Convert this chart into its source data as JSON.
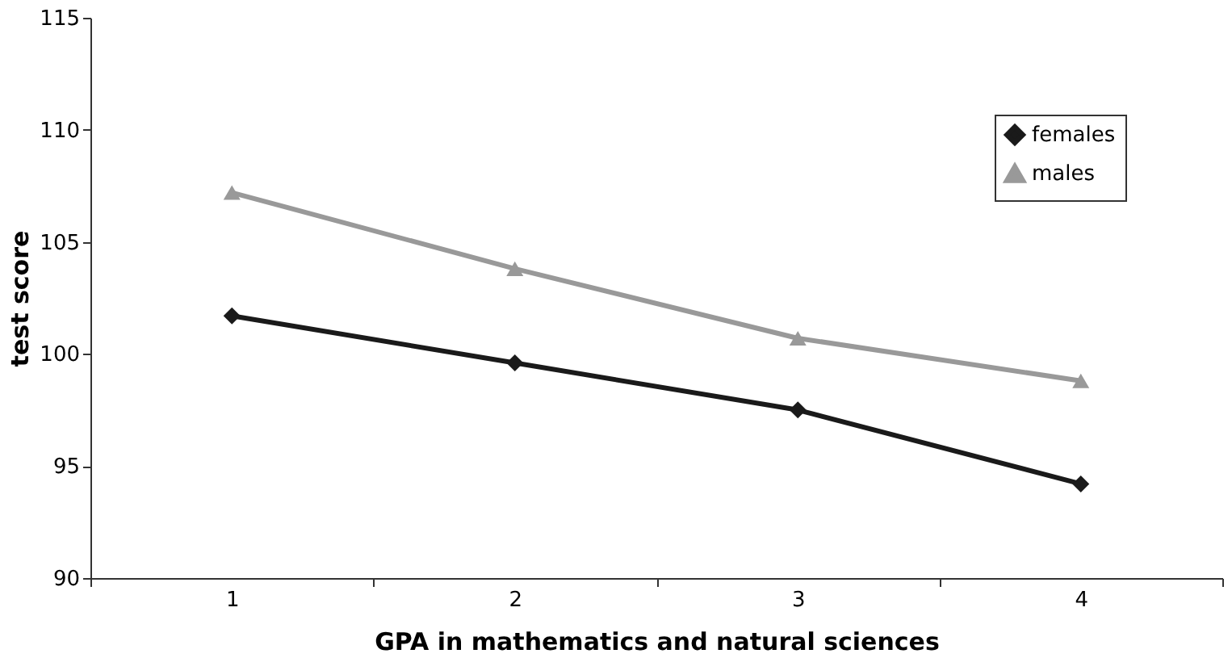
{
  "chart_data": {
    "type": "line",
    "xlabel": "GPA in mathematics and natural sciences",
    "ylabel": "test score",
    "categories": [
      "1",
      "2",
      "3",
      "4"
    ],
    "series": [
      {
        "name": "females",
        "color": "#1a1a1a",
        "marker": "diamond",
        "values": [
          101.7,
          99.6,
          97.5,
          94.2
        ]
      },
      {
        "name": "males",
        "color": "#999999",
        "marker": "triangle",
        "values": [
          107.2,
          103.8,
          100.7,
          98.8
        ]
      }
    ],
    "ylim": [
      90,
      115
    ],
    "yticks": [
      90,
      95,
      100,
      105,
      110,
      115
    ],
    "grid": false,
    "legend": "top right"
  }
}
